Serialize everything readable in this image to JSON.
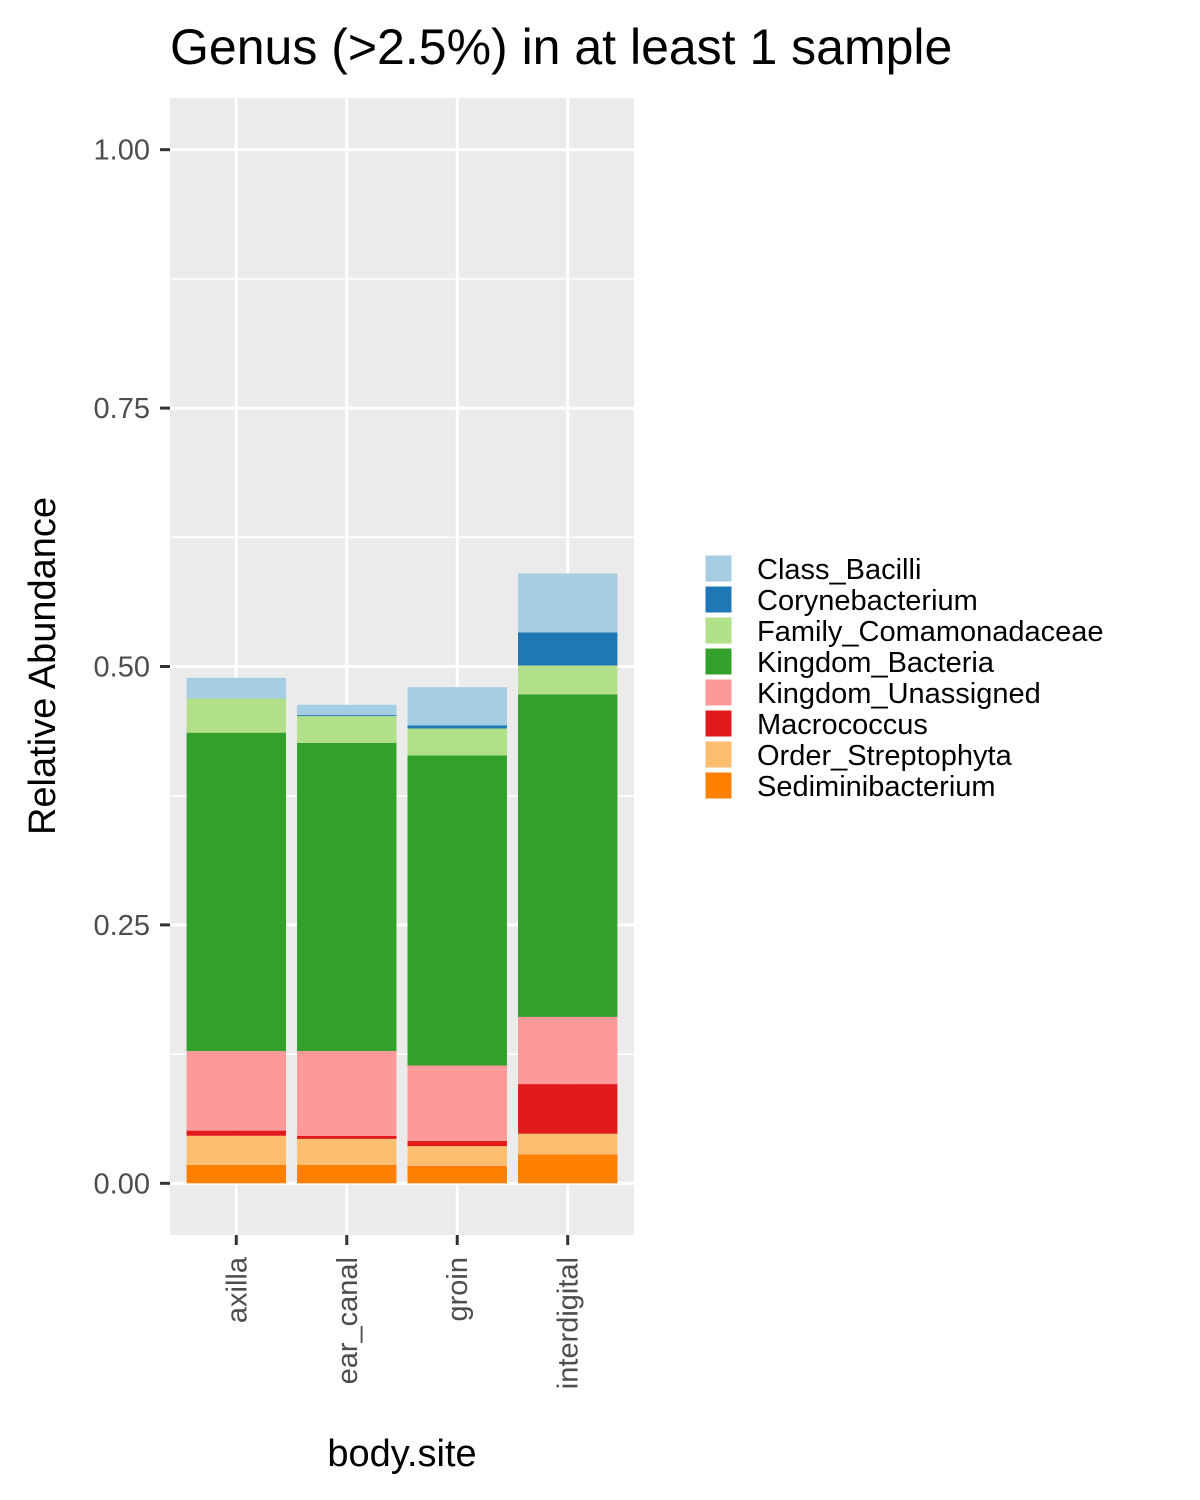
{
  "chart_data": {
    "type": "bar",
    "stacked": true,
    "title": "Genus (>2.5%) in at least 1 sample",
    "xlabel": "body.site",
    "ylabel": "Relative Abundance",
    "ylim": [
      -0.05,
      1.05
    ],
    "yticks": [
      {
        "value": 0.0,
        "label": "0.00"
      },
      {
        "value": 0.25,
        "label": "0.25"
      },
      {
        "value": 0.5,
        "label": "0.50"
      },
      {
        "value": 0.75,
        "label": "0.75"
      },
      {
        "value": 1.0,
        "label": "1.00"
      }
    ],
    "grid": true,
    "legend_position": "right",
    "categories": [
      "axilla",
      "ear_canal",
      "groin",
      "interdigital"
    ],
    "series": [
      {
        "name": "Sediminibacterium",
        "color": "#FF7F00",
        "values": [
          0.018,
          0.018,
          0.017,
          0.028
        ]
      },
      {
        "name": "Order_Streptophyta",
        "color": "#FDBF6F",
        "values": [
          0.028,
          0.025,
          0.019,
          0.02
        ]
      },
      {
        "name": "Macrococcus",
        "color": "#E31A1C",
        "values": [
          0.005,
          0.003,
          0.005,
          0.048
        ]
      },
      {
        "name": "Kingdom_Unassigned",
        "color": "#FB9A99",
        "values": [
          0.077,
          0.082,
          0.073,
          0.065
        ]
      },
      {
        "name": "Kingdom_Bacteria",
        "color": "#33A02C",
        "values": [
          0.308,
          0.298,
          0.3,
          0.312
        ]
      },
      {
        "name": "Family_Comamonadaceae",
        "color": "#B2DF8A",
        "values": [
          0.033,
          0.026,
          0.026,
          0.028
        ]
      },
      {
        "name": "Corynebacterium",
        "color": "#1F78B4",
        "values": [
          0.0,
          0.001,
          0.003,
          0.032
        ]
      },
      {
        "name": "Class_Bacilli",
        "color": "#A6CEE3",
        "values": [
          0.02,
          0.01,
          0.037,
          0.057
        ]
      }
    ],
    "legend_order": [
      "Class_Bacilli",
      "Corynebacterium",
      "Family_Comamonadaceae",
      "Kingdom_Bacteria",
      "Kingdom_Unassigned",
      "Macrococcus",
      "Order_Streptophyta",
      "Sediminibacterium"
    ]
  }
}
